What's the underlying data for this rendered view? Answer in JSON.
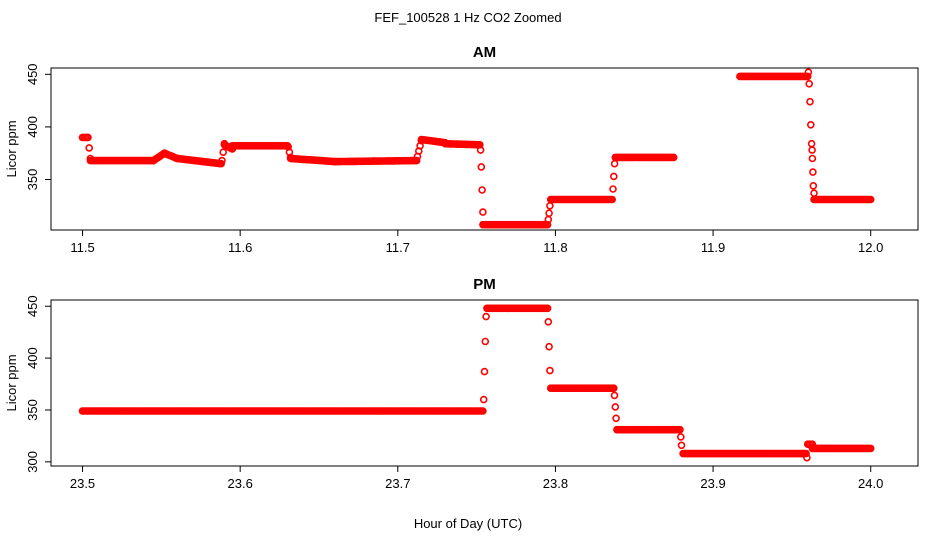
{
  "title": "FEF_100528  1 Hz CO2 Zoomed",
  "xlabel": "Hour of Day (UTC)",
  "chart_data": [
    {
      "type": "scatter",
      "title": "AM",
      "ylabel": "Licor ppm",
      "xlim": [
        11.48,
        12.03
      ],
      "ylim": [
        302,
        456
      ],
      "xticks": [
        11.5,
        11.6,
        11.7,
        11.8,
        11.9,
        12.0
      ],
      "xtick_labels": [
        "11.5",
        "11.6",
        "11.7",
        "11.8",
        "11.9",
        "12.0"
      ],
      "yticks": [
        350,
        400,
        450
      ],
      "ytick_labels": [
        "350",
        "400",
        "450"
      ],
      "grid": false,
      "color": "#ff0000",
      "segments": [
        {
          "x": [
            11.5,
            11.503
          ],
          "y": [
            390,
            390
          ]
        },
        {
          "x": [
            11.5035,
            11.505
          ],
          "y": [
            390,
            370
          ]
        },
        {
          "x": [
            11.505,
            11.545
          ],
          "y": [
            368,
            368
          ]
        },
        {
          "x": [
            11.545,
            11.552
          ],
          "y": [
            368,
            375
          ]
        },
        {
          "x": [
            11.552,
            11.56
          ],
          "y": [
            375,
            370
          ]
        },
        {
          "x": [
            11.56,
            11.588
          ],
          "y": [
            370,
            365
          ]
        },
        {
          "x": [
            11.5885,
            11.59
          ],
          "y": [
            368,
            384
          ]
        },
        {
          "x": [
            11.59,
            11.595
          ],
          "y": [
            383,
            379
          ]
        },
        {
          "x": [
            11.595,
            11.63
          ],
          "y": [
            382,
            382
          ]
        },
        {
          "x": [
            11.6305,
            11.632
          ],
          "y": [
            381,
            371
          ]
        },
        {
          "x": [
            11.632,
            11.66
          ],
          "y": [
            370,
            367
          ]
        },
        {
          "x": [
            11.66,
            11.712
          ],
          "y": [
            367,
            368
          ]
        },
        {
          "x": [
            11.7125,
            11.715
          ],
          "y": [
            372,
            387
          ]
        },
        {
          "x": [
            11.715,
            11.73
          ],
          "y": [
            388,
            385
          ]
        },
        {
          "x": [
            11.73,
            11.752
          ],
          "y": [
            384,
            383
          ]
        },
        {
          "x": [
            11.754,
            11.795
          ],
          "y": [
            307,
            307
          ]
        },
        {
          "x": [
            11.797,
            11.836
          ],
          "y": [
            331,
            331
          ]
        },
        {
          "x": [
            11.838,
            11.875
          ],
          "y": [
            371,
            371
          ]
        },
        {
          "x": [
            11.917,
            11.96
          ],
          "y": [
            448,
            448
          ]
        },
        {
          "x": [
            11.964,
            12.0
          ],
          "y": [
            331,
            331
          ]
        }
      ],
      "points": [
        {
          "x": 11.7525,
          "y": 378
        },
        {
          "x": 11.753,
          "y": 362
        },
        {
          "x": 11.7535,
          "y": 340
        },
        {
          "x": 11.754,
          "y": 319
        },
        {
          "x": 11.7955,
          "y": 312
        },
        {
          "x": 11.796,
          "y": 318
        },
        {
          "x": 11.7965,
          "y": 325
        },
        {
          "x": 11.8365,
          "y": 341
        },
        {
          "x": 11.837,
          "y": 353
        },
        {
          "x": 11.8375,
          "y": 365
        },
        {
          "x": 11.9605,
          "y": 452
        },
        {
          "x": 11.961,
          "y": 441
        },
        {
          "x": 11.9615,
          "y": 424
        },
        {
          "x": 11.962,
          "y": 402
        },
        {
          "x": 11.9625,
          "y": 384
        },
        {
          "x": 11.9628,
          "y": 378
        },
        {
          "x": 11.963,
          "y": 370
        },
        {
          "x": 11.9633,
          "y": 357
        },
        {
          "x": 11.9636,
          "y": 344
        },
        {
          "x": 11.964,
          "y": 337
        }
      ]
    },
    {
      "type": "scatter",
      "title": "PM",
      "ylabel": "Licor ppm",
      "xlim": [
        23.48,
        24.03
      ],
      "ylim": [
        296,
        456
      ],
      "xticks": [
        23.5,
        23.6,
        23.7,
        23.8,
        23.9,
        24.0
      ],
      "xtick_labels": [
        "23.5",
        "23.6",
        "23.7",
        "23.8",
        "23.9",
        "24.0"
      ],
      "yticks": [
        300,
        350,
        400,
        450
      ],
      "ytick_labels": [
        "300",
        "350",
        "400",
        "450"
      ],
      "grid": false,
      "color": "#ff0000",
      "segments": [
        {
          "x": [
            23.5,
            23.754
          ],
          "y": [
            349,
            349
          ]
        },
        {
          "x": [
            23.7565,
            23.795
          ],
          "y": [
            448,
            448
          ]
        },
        {
          "x": [
            23.797,
            23.837
          ],
          "y": [
            371,
            371
          ]
        },
        {
          "x": [
            23.839,
            23.879
          ],
          "y": [
            331,
            331
          ]
        },
        {
          "x": [
            23.881,
            23.959
          ],
          "y": [
            308,
            308
          ]
        },
        {
          "x": [
            23.96,
            23.963
          ],
          "y": [
            317,
            317
          ]
        },
        {
          "x": [
            23.963,
            24.0
          ],
          "y": [
            313,
            313
          ]
        }
      ],
      "points": [
        {
          "x": 23.7545,
          "y": 360
        },
        {
          "x": 23.755,
          "y": 387
        },
        {
          "x": 23.7555,
          "y": 416
        },
        {
          "x": 23.756,
          "y": 440
        },
        {
          "x": 23.7955,
          "y": 435
        },
        {
          "x": 23.796,
          "y": 411
        },
        {
          "x": 23.7965,
          "y": 388
        },
        {
          "x": 23.8375,
          "y": 364
        },
        {
          "x": 23.838,
          "y": 353
        },
        {
          "x": 23.8385,
          "y": 342
        },
        {
          "x": 23.8795,
          "y": 324
        },
        {
          "x": 23.88,
          "y": 316
        },
        {
          "x": 23.9595,
          "y": 304
        }
      ]
    }
  ]
}
